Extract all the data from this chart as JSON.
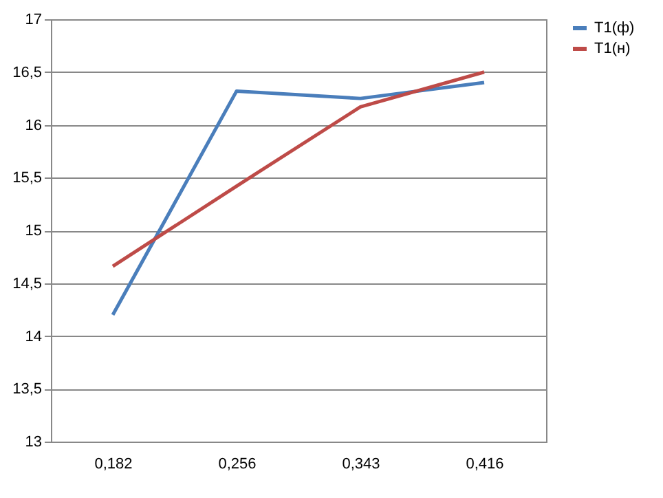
{
  "chart_data": {
    "type": "line",
    "categories": [
      "0,182",
      "0,256",
      "0,343",
      "0,416"
    ],
    "series": [
      {
        "name": "T1(ф)",
        "color": "#4a7ebb",
        "values": [
          14.2,
          16.32,
          16.25,
          16.4
        ]
      },
      {
        "name": "T1(н)",
        "color": "#be4b48",
        "values": [
          14.66,
          15.42,
          16.17,
          16.5
        ]
      }
    ],
    "ylim": [
      13,
      17
    ],
    "yticks": [
      13,
      {
        "value": 13.5,
        "label": "13,5"
      },
      14,
      {
        "value": 14.5,
        "label": "14,5"
      },
      15,
      {
        "value": 15.5,
        "label": "15,5"
      },
      16,
      {
        "value": 16.5,
        "label": "16,5"
      },
      17
    ],
    "grid": "y",
    "legend": "right",
    "marker": "none",
    "line_style": "solid"
  }
}
